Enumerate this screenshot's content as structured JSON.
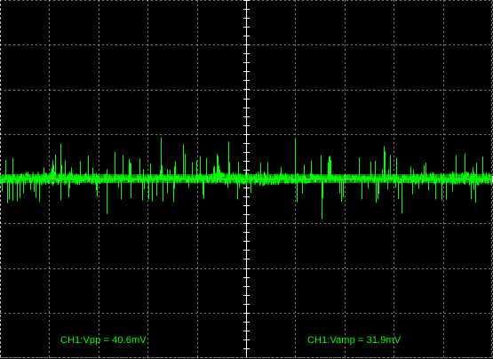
{
  "colors": {
    "background": "#000000",
    "grid": "#ffffff",
    "trace": "#00ff00",
    "measurement_text": "#00ff00"
  },
  "channel": "CH1",
  "measurements": {
    "vpp": "CH1:Vpp = 40.6mV",
    "vamp": "CH1:Vamp = 31.9mV"
  }
}
